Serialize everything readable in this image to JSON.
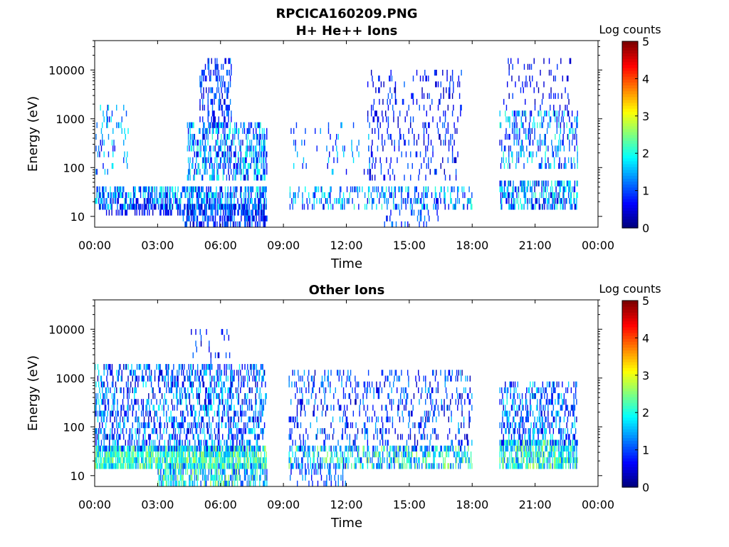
{
  "figure_title": "RPCICA160209.PNG",
  "chart_data": [
    {
      "type": "heatmap",
      "title": "H+ He++ Ions",
      "xlabel": "Time",
      "ylabel": "Energy (eV)",
      "x_ticks": [
        "00:00",
        "03:00",
        "06:00",
        "09:00",
        "12:00",
        "15:00",
        "18:00",
        "21:00",
        "00:00"
      ],
      "x_range_hours": [
        0,
        24
      ],
      "y_scale": "log",
      "y_ticks": [
        "10",
        "100",
        "1000",
        "10000"
      ],
      "y_range_eV": [
        6,
        40000
      ],
      "colorbar": {
        "label": "Log counts",
        "ticks": [
          "0",
          "1",
          "2",
          "3",
          "4",
          "5"
        ],
        "range": [
          0,
          5
        ],
        "colormap": "jet"
      },
      "segments_hours": [
        [
          0.0,
          8.2
        ],
        [
          9.25,
          18.05
        ],
        [
          19.3,
          23.0
        ]
      ],
      "bands": [
        {
          "t": [
            0.0,
            8.2
          ],
          "e": [
            18,
            35
          ],
          "density": 0.55,
          "level": [
            0.3,
            2.2
          ]
        },
        {
          "t": [
            4.2,
            8.2
          ],
          "e": [
            6,
            18
          ],
          "density": 0.6,
          "level": [
            0.2,
            1.5
          ]
        },
        {
          "t": [
            0.2,
            4.2
          ],
          "e": [
            12,
            18
          ],
          "density": 0.35,
          "level": [
            0.2,
            1.0
          ]
        },
        {
          "t": [
            0.0,
            1.6
          ],
          "e": [
            80,
            1500
          ],
          "density": 0.12,
          "level": [
            0.4,
            2.0
          ]
        },
        {
          "t": [
            4.4,
            8.2
          ],
          "e": [
            60,
            800
          ],
          "density": 0.45,
          "level": [
            0.3,
            2.2
          ]
        },
        {
          "t": [
            5.0,
            6.5
          ],
          "e": [
            800,
            16000
          ],
          "density": 0.28,
          "level": [
            0.3,
            1.4
          ]
        },
        {
          "t": [
            9.25,
            18.0
          ],
          "e": [
            15,
            35
          ],
          "density": 0.28,
          "level": [
            0.4,
            2.2
          ]
        },
        {
          "t": [
            9.3,
            13.5
          ],
          "e": [
            80,
            800
          ],
          "density": 0.06,
          "level": [
            0.4,
            1.8
          ]
        },
        {
          "t": [
            13.0,
            17.5
          ],
          "e": [
            60,
            9000
          ],
          "density": 0.14,
          "level": [
            0.2,
            1.2
          ]
        },
        {
          "t": [
            13.8,
            16.5
          ],
          "e": [
            6,
            20
          ],
          "density": 0.12,
          "level": [
            0.4,
            1.5
          ]
        },
        {
          "t": [
            19.3,
            23.0
          ],
          "e": [
            18,
            50
          ],
          "density": 0.5,
          "level": [
            0.3,
            2.3
          ]
        },
        {
          "t": [
            19.3,
            23.0
          ],
          "e": [
            100,
            1200
          ],
          "density": 0.25,
          "level": [
            0.3,
            2.2
          ]
        },
        {
          "t": [
            19.4,
            22.8
          ],
          "e": [
            1200,
            15000
          ],
          "density": 0.08,
          "level": [
            0.2,
            1.0
          ]
        }
      ]
    },
    {
      "type": "heatmap",
      "title": "Other Ions",
      "xlabel": "Time",
      "ylabel": "Energy (eV)",
      "x_ticks": [
        "00:00",
        "03:00",
        "06:00",
        "09:00",
        "12:00",
        "15:00",
        "18:00",
        "21:00",
        "00:00"
      ],
      "x_range_hours": [
        0,
        24
      ],
      "y_scale": "log",
      "y_ticks": [
        "10",
        "100",
        "1000",
        "10000"
      ],
      "y_range_eV": [
        6,
        40000
      ],
      "colorbar": {
        "label": "Log counts",
        "ticks": [
          "0",
          "1",
          "2",
          "3",
          "4",
          "5"
        ],
        "range": [
          0,
          5
        ],
        "colormap": "jet"
      },
      "segments_hours": [
        [
          0.0,
          8.2
        ],
        [
          9.25,
          18.05
        ],
        [
          19.3,
          23.0
        ]
      ],
      "bands": [
        {
          "t": [
            0.0,
            8.2
          ],
          "e": [
            15,
            40
          ],
          "density": 0.8,
          "level": [
            1.3,
            2.8
          ]
        },
        {
          "t": [
            3.0,
            8.2
          ],
          "e": [
            6,
            15
          ],
          "density": 0.55,
          "level": [
            0.8,
            2.8
          ]
        },
        {
          "t": [
            0.0,
            8.2
          ],
          "e": [
            40,
            1500
          ],
          "density": 0.35,
          "level": [
            0.2,
            2.0
          ]
        },
        {
          "t": [
            4.5,
            6.5
          ],
          "e": [
            1500,
            10000
          ],
          "density": 0.12,
          "level": [
            0.2,
            1.2
          ]
        },
        {
          "t": [
            9.25,
            18.0
          ],
          "e": [
            15,
            40
          ],
          "density": 0.45,
          "level": [
            0.8,
            2.8
          ]
        },
        {
          "t": [
            9.25,
            18.0
          ],
          "e": [
            40,
            1200
          ],
          "density": 0.18,
          "level": [
            0.2,
            1.6
          ]
        },
        {
          "t": [
            9.3,
            12.0
          ],
          "e": [
            6,
            15
          ],
          "density": 0.2,
          "level": [
            0.4,
            1.5
          ]
        },
        {
          "t": [
            19.3,
            23.0
          ],
          "e": [
            15,
            45
          ],
          "density": 0.7,
          "level": [
            1.0,
            2.8
          ]
        },
        {
          "t": [
            19.3,
            23.0
          ],
          "e": [
            45,
            800
          ],
          "density": 0.35,
          "level": [
            0.3,
            2.0
          ]
        }
      ]
    }
  ]
}
